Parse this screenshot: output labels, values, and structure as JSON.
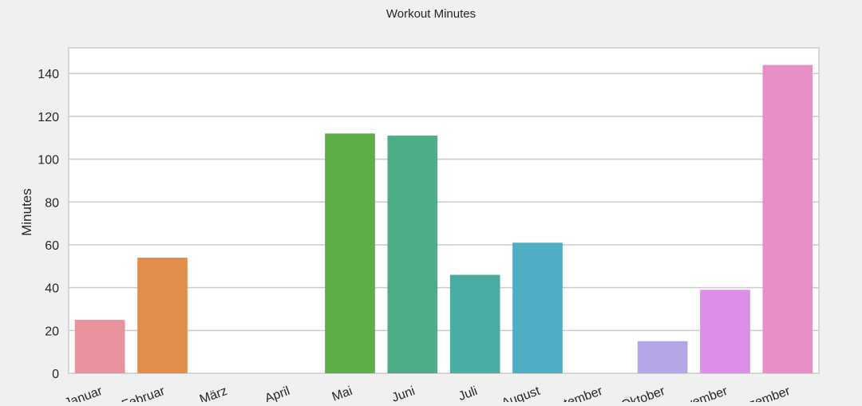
{
  "chart_data": {
    "type": "bar",
    "title": "Workout Minutes",
    "xlabel": "",
    "ylabel": "Minutes",
    "categories": [
      "Januar",
      "Februar",
      "März",
      "April",
      "Mai",
      "Juni",
      "Juli",
      "August",
      "September",
      "Oktober",
      "November",
      "Dezember"
    ],
    "values": [
      25,
      54,
      0,
      0,
      112,
      111,
      46,
      61,
      0,
      15,
      39,
      144
    ],
    "ylim": [
      0,
      152
    ],
    "yticks": [
      0,
      20,
      40,
      60,
      80,
      100,
      120,
      140
    ],
    "grid": true,
    "colors": [
      "#e8929e",
      "#e08d4d",
      "#b99e3e",
      "#8cab3e",
      "#5eae48",
      "#4cad86",
      "#49aba2",
      "#4faec3",
      "#6aa4dc",
      "#b5a6e8",
      "#dd8ee8",
      "#e88ec6"
    ]
  }
}
